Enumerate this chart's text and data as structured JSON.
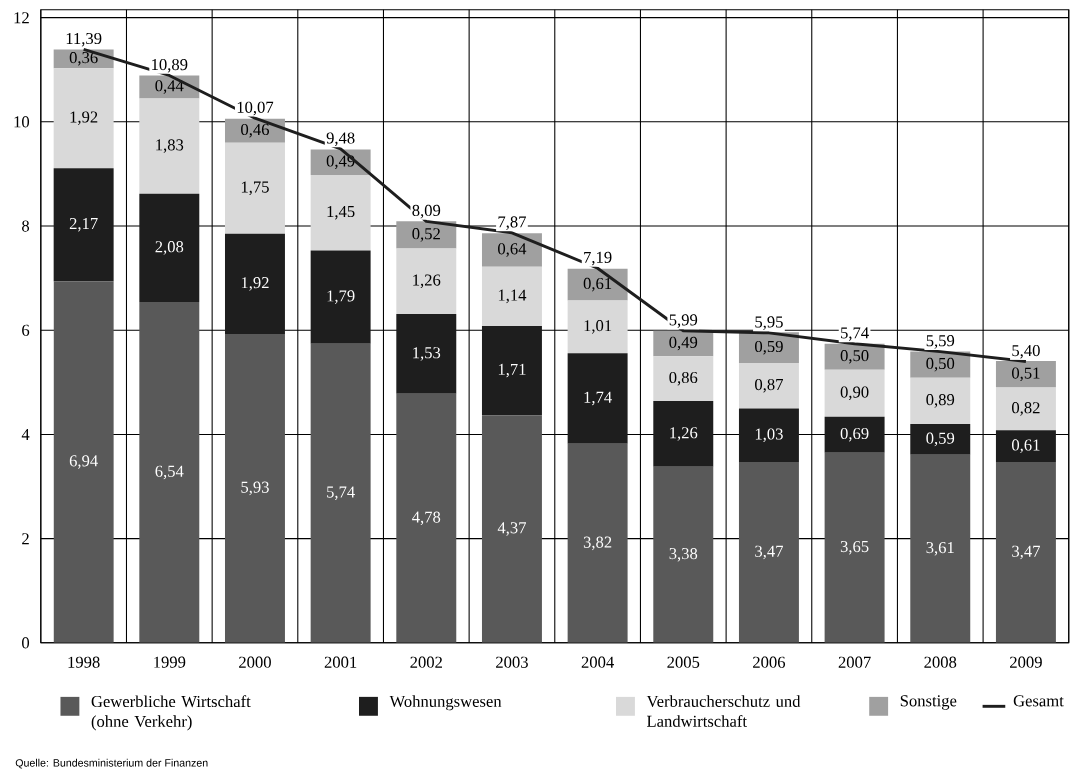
{
  "chart_data": {
    "type": "bar",
    "stacked": true,
    "categories": [
      "1998",
      "1999",
      "2000",
      "2001",
      "2002",
      "2003",
      "2004",
      "2005",
      "2006",
      "2007",
      "2008",
      "2009"
    ],
    "ylim": [
      0,
      12.15
    ],
    "yticks": [
      0,
      2,
      4,
      6,
      8,
      10,
      12
    ],
    "grid": true,
    "legend": "bottom",
    "series": [
      {
        "name": "Gewerbliche Wirtschaft (ohne Verkehr)",
        "color": "#595959",
        "values": [
          6.94,
          6.54,
          5.93,
          5.74,
          4.78,
          4.37,
          3.82,
          3.38,
          3.47,
          3.65,
          3.61,
          3.47
        ],
        "value_labels": [
          "6,94",
          "6,54",
          "5,93",
          "5,74",
          "4,78",
          "4,37",
          "3,82",
          "3,38",
          "3,47",
          "3,65",
          "3,61",
          "3,47"
        ]
      },
      {
        "name": "Wohnungswesen",
        "color": "#1e1e1e",
        "values": [
          2.17,
          2.08,
          1.92,
          1.79,
          1.53,
          1.71,
          1.74,
          1.26,
          1.03,
          0.69,
          0.59,
          0.61
        ],
        "value_labels": [
          "2,17",
          "2,08",
          "1,92",
          "1,79",
          "1,53",
          "1,71",
          "1,74",
          "1,26",
          "1,03",
          "0,69",
          "0,59",
          "0,61"
        ]
      },
      {
        "name": "Verbraucherschutz und Landwirtschaft",
        "color": "#d9d9d9",
        "values": [
          1.92,
          1.83,
          1.75,
          1.45,
          1.26,
          1.14,
          1.01,
          0.86,
          0.87,
          0.9,
          0.89,
          0.82
        ],
        "value_labels": [
          "1,92",
          "1,83",
          "1,75",
          "1,45",
          "1,26",
          "1,14",
          "1,01",
          "0,86",
          "0,87",
          "0,90",
          "0,89",
          "0,82"
        ]
      },
      {
        "name": "Sonstige",
        "color": "#a0a0a0",
        "values": [
          0.36,
          0.44,
          0.46,
          0.49,
          0.52,
          0.64,
          0.61,
          0.49,
          0.59,
          0.5,
          0.5,
          0.51
        ],
        "value_labels": [
          "0,36",
          "0,44",
          "0,46",
          "0,49",
          "0,52",
          "0,64",
          "0,61",
          "0,49",
          "0,59",
          "0,50",
          "0,50",
          "0,51"
        ]
      },
      {
        "name": "Gesamt",
        "type": "line",
        "line_style": "solid",
        "color": "#1e1e1e",
        "values": [
          11.39,
          10.89,
          10.07,
          9.48,
          8.09,
          7.87,
          7.19,
          5.99,
          5.95,
          5.74,
          5.59,
          5.4
        ],
        "value_labels": [
          "11,39",
          "10,89",
          "10,07",
          "9,48",
          "8,09",
          "7,87",
          "7,19",
          "5,99",
          "5,95",
          "5,74",
          "5,59",
          "5,40"
        ]
      }
    ],
    "annotations": [
      "Quelle: Bundesministerium der Finanzen"
    ]
  }
}
